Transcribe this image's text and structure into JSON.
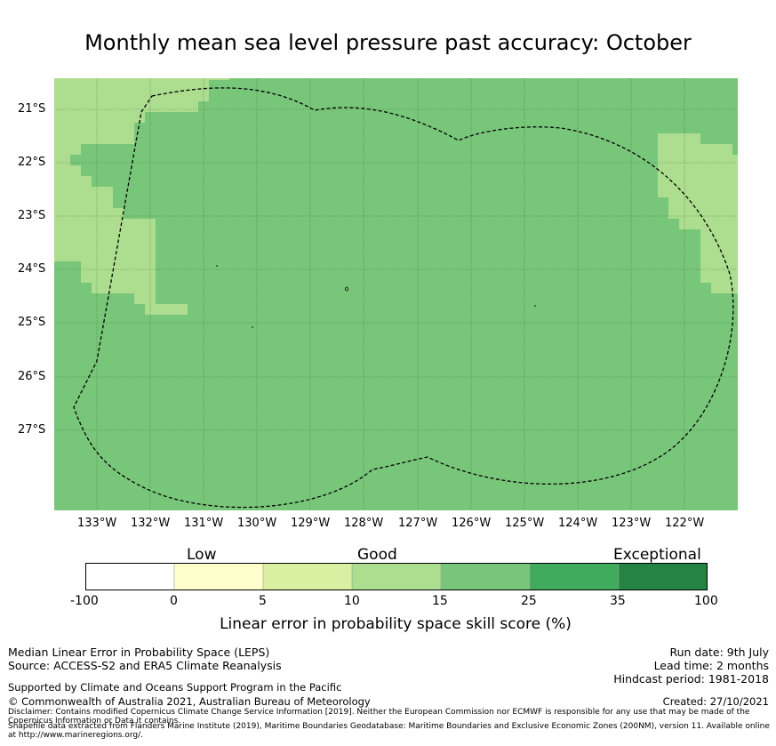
{
  "title": "Monthly mean sea level pressure past accuracy: October",
  "map": {
    "lat_labels": [
      "21°S",
      "22°S",
      "23°S",
      "24°S",
      "25°S",
      "26°S",
      "27°S"
    ],
    "lon_labels": [
      "133°W",
      "132°W",
      "131°W",
      "130°W",
      "129°W",
      "128°W",
      "127°W",
      "126°W",
      "125°W",
      "124°W",
      "123°W",
      "122°W"
    ],
    "colors": {
      "good": "#78c679",
      "fair": "#addd8e",
      "outline": "#000000",
      "grid": "#2d6b2d"
    }
  },
  "colorbar": {
    "categories": [
      "Low",
      "Good",
      "Exceptional"
    ],
    "ticks": [
      "-100",
      "0",
      "5",
      "10",
      "15",
      "25",
      "35",
      "100"
    ],
    "colors": [
      "#ffffff",
      "#ffffcc",
      "#d9f0a3",
      "#addd8e",
      "#78c679",
      "#41ab5d",
      "#238443"
    ],
    "label": "Linear error in probability space skill score (%)"
  },
  "footer": {
    "left_line1": "Median Linear Error in Probability Space (LEPS)",
    "left_line2": "Source: ACCESS-S2 and ERA5 Climate Reanalysis",
    "support": "Supported by Climate and Oceans Support Program in the Pacific",
    "copyright": "© Commonwealth of Australia 2021, Australian Bureau of Meteorology",
    "run_date": "Run date: 9th July",
    "lead_time": "Lead time: 2 months",
    "hindcast": "Hindcast period: 1981-2018",
    "created": "Created: 27/10/2021",
    "disclaimer": "Disclaimer: Contains modified Copernicus Climate Change Service Information [2019]. Neither the European Commission nor ECMWF is responsible for any use that may be made of the Copernicus Information or Data it contains.",
    "shapefile": "Shapefile data extracted from Flanders Marine Institute (2019), Maritime Boundaries Geodatabase: Maritime Boundaries and Exclusive Economic Zones (200NM), version 11. Available online at http://www.marineregions.org/."
  }
}
